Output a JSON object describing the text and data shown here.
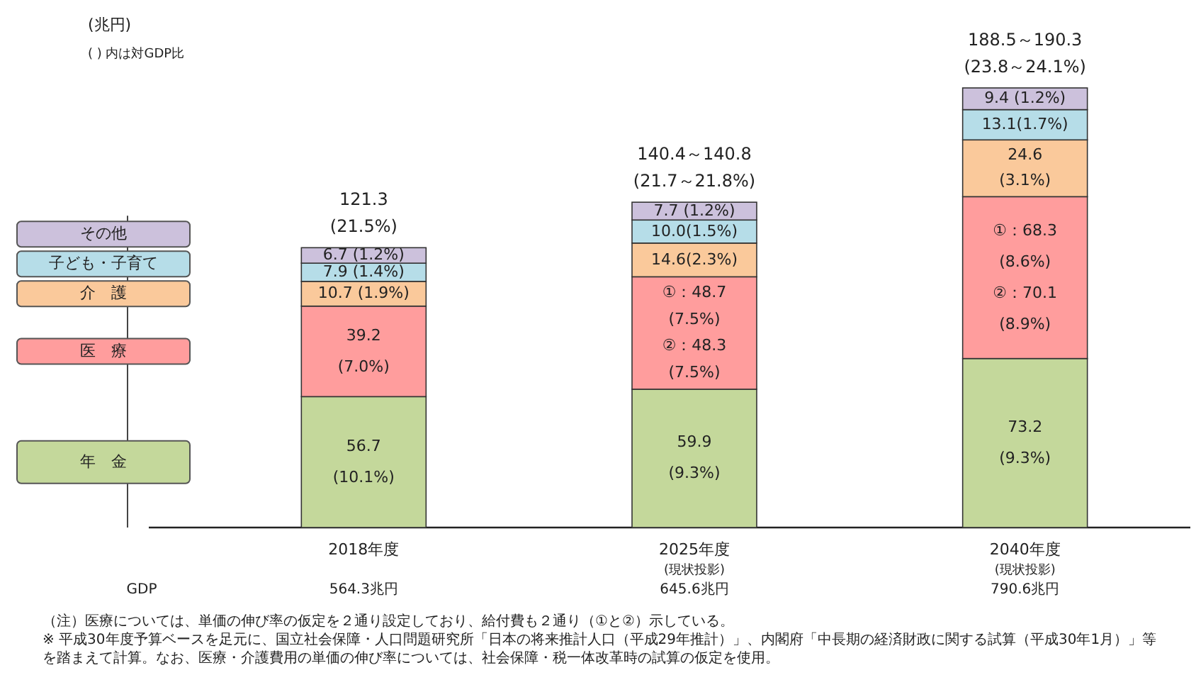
{
  "chart_data": {
    "type": "bar",
    "stacked": true,
    "ylabel": "(兆円)",
    "subtitle": "( ) 内は対GDP比",
    "categories": [
      "2018年度",
      "2025年度\n(現状投影)",
      "2040年度\n(現状投影)"
    ],
    "series": [
      {
        "name": "年　金",
        "color": "#c4d89b",
        "values": [
          56.7,
          59.9,
          73.2
        ],
        "value_labels": [
          "56.7\n(10.1%)",
          "59.9\n(9.3%)",
          "73.2\n(9.3%)"
        ]
      },
      {
        "name": "医　療",
        "color": "#ff9d9d",
        "values": [
          39.2,
          48.7,
          70.1
        ],
        "value_labels": [
          "39.2\n(7.0%)",
          "①：48.7\n(7.5%)\n②：48.3\n(7.5%)",
          "①：68.3\n(8.6%)\n②：70.1\n(8.9%)"
        ]
      },
      {
        "name": "介　護",
        "color": "#fac99b",
        "values": [
          10.7,
          14.6,
          24.6
        ],
        "value_labels": [
          "10.7 (1.9%)",
          "14.6(2.3%)",
          "24.6\n(3.1%)"
        ]
      },
      {
        "name": "子ども・子育て",
        "color": "#b6dde8",
        "values": [
          7.9,
          10.0,
          13.1
        ],
        "value_labels": [
          "7.9 (1.4%)",
          "10.0(1.5%)",
          "13.1(1.7%)"
        ]
      },
      {
        "name": "その他",
        "color": "#ccc1dc",
        "values": [
          6.7,
          7.7,
          9.4
        ],
        "value_labels": [
          "6.7 (1.2%)",
          "7.7 (1.2%)",
          "9.4 (1.2%)"
        ]
      }
    ],
    "totals": [
      "121.3\n(21.5%)",
      "140.4～140.8\n(21.7～21.8%)",
      "188.5～190.3\n(23.8～24.1%)"
    ],
    "legend": "left",
    "annotations": [
      "GDP",
      "564.3兆円",
      "645.6兆円",
      "790.6兆円",
      "（注）医療については、単価の伸び率の仮定を２通り設定しており、給付費も２通り（①と②）示している。",
      "※ 平成30年度予算ベースを足元に、国立社会保障・人口問題研究所「日本の将来推計人口（平成29年推計）」、内閣府「中長期の経済財政に関する試算（平成30年1月）」等を踏まえて計算。なお、医療・介護費用の単価の伸び率については、社会保障・税一体改革時の試算の仮定を使用。"
    ]
  }
}
